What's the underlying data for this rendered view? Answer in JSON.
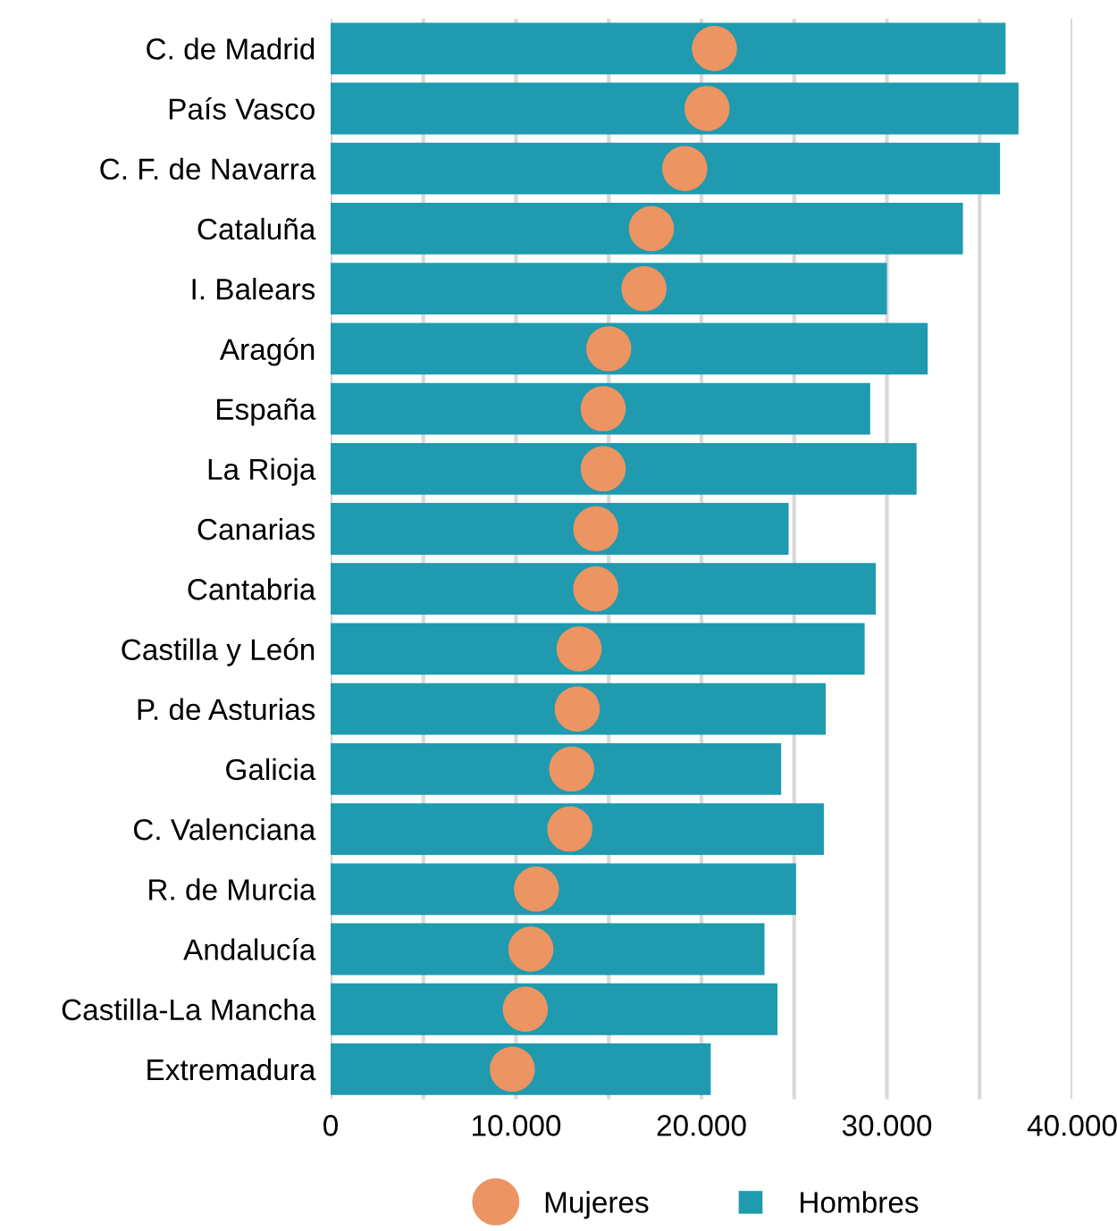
{
  "chart_data": {
    "type": "bar",
    "orientation": "horizontal",
    "categories": [
      "C. de Madrid",
      "País Vasco",
      "C. F. de Navarra",
      "Cataluña",
      "I. Balears",
      "Aragón",
      "España",
      "La Rioja",
      "Canarias",
      "Cantabria",
      "Castilla y León",
      "P. de Asturias",
      "Galicia",
      "C. Valenciana",
      "R. de Murcia",
      "Andalucía",
      "Castilla-La Mancha",
      "Extremadura"
    ],
    "series": [
      {
        "name": "Mujeres",
        "type": "scatter",
        "color": "#ec9462",
        "values": [
          20700,
          20300,
          19100,
          17300,
          16900,
          15000,
          14700,
          14700,
          14300,
          14300,
          13400,
          13300,
          13000,
          12900,
          11100,
          10800,
          10500,
          9800
        ]
      },
      {
        "name": "Hombres",
        "color": "#1f9aaf",
        "values": [
          36400,
          37100,
          36100,
          34100,
          30000,
          32200,
          29100,
          31600,
          24700,
          29400,
          28800,
          26700,
          24300,
          26600,
          25100,
          23400,
          24100,
          20500
        ]
      }
    ],
    "xlim": [
      0,
      40000
    ],
    "xticks": [
      0,
      {
        "value": 5000,
        "label": null
      },
      {
        "value": 10000,
        "label": "10.000"
      },
      {
        "value": 15000,
        "label": null
      },
      {
        "value": 20000,
        "label": "20.000"
      },
      {
        "value": 25000,
        "label": null
      },
      {
        "value": 30000,
        "label": "30.000"
      },
      {
        "value": 35000,
        "label": null
      },
      {
        "value": 40000,
        "label": "40.000"
      }
    ],
    "grid": "x",
    "legend": "bottom",
    "marker": "circle"
  }
}
